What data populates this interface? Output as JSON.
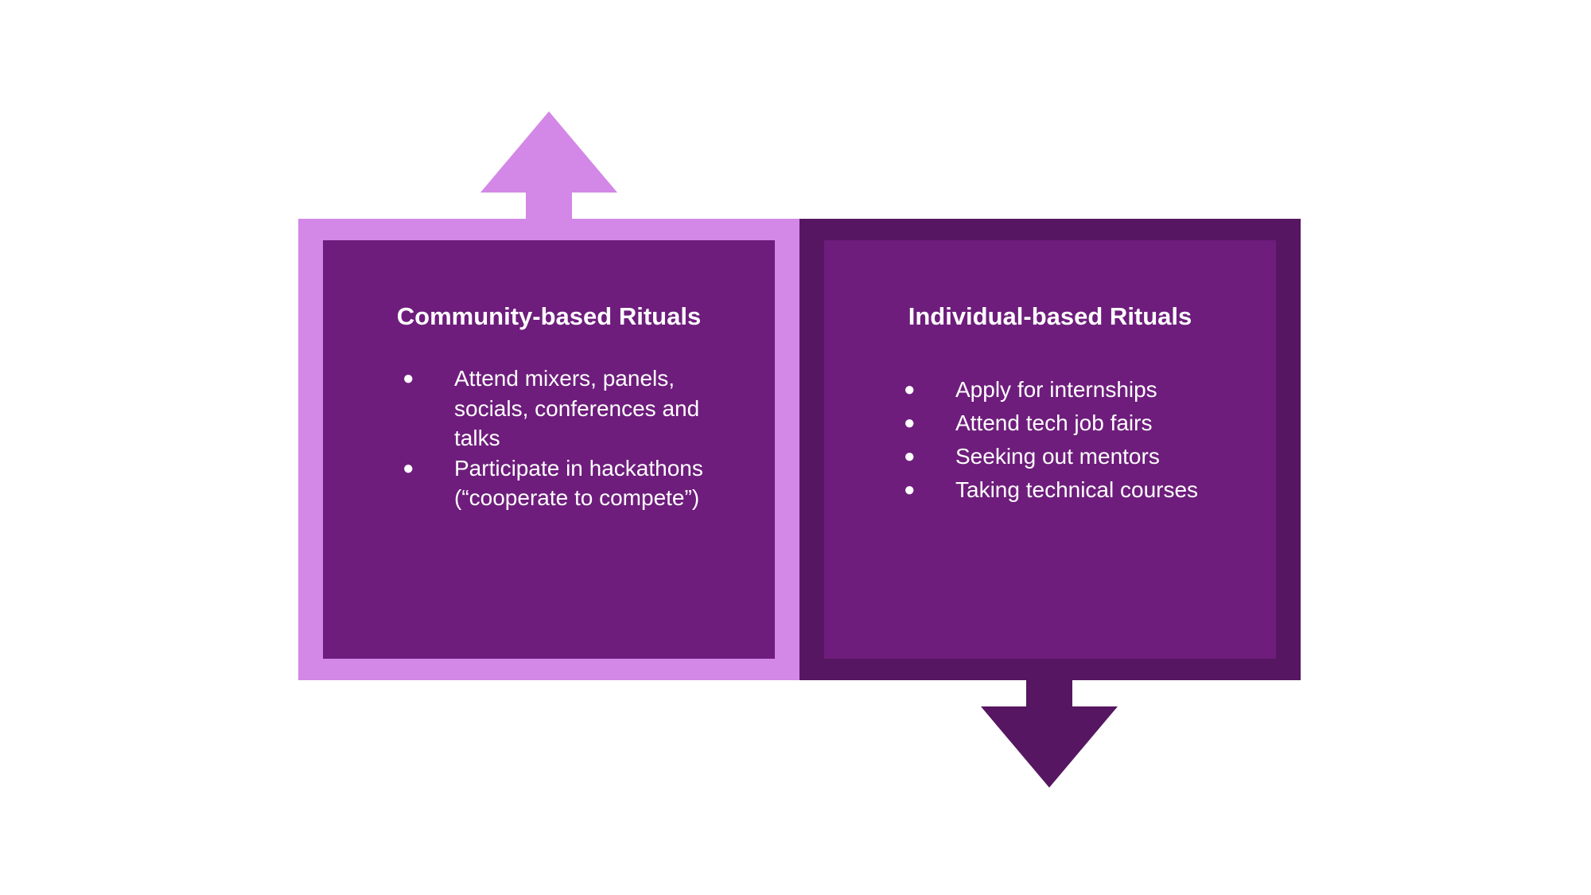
{
  "colors": {
    "light_purple": "#d387e6",
    "mid_purple": "#6e1d7c",
    "dark_purple": "#561661",
    "text": "#ffffff"
  },
  "left_panel": {
    "title": "Community-based Rituals",
    "items": [
      {
        "bullet": "●",
        "text": "Attend mixers, panels, socials, conferences and talks"
      },
      {
        "bullet": "●",
        "text": "Participate in hackathons (“cooperate to compete”)"
      }
    ]
  },
  "right_panel": {
    "title": "Individual-based Rituals",
    "items": [
      {
        "bullet": "●",
        "text": "Apply for internships"
      },
      {
        "bullet": "●",
        "text": "Attend tech job fairs"
      },
      {
        "bullet": "●",
        "text": "Seeking out mentors"
      },
      {
        "bullet": "●",
        "text": "Taking technical courses"
      }
    ]
  },
  "arrows": {
    "left": {
      "direction": "up",
      "icon": "arrow-up-icon"
    },
    "right": {
      "direction": "down",
      "icon": "arrow-down-icon"
    }
  }
}
